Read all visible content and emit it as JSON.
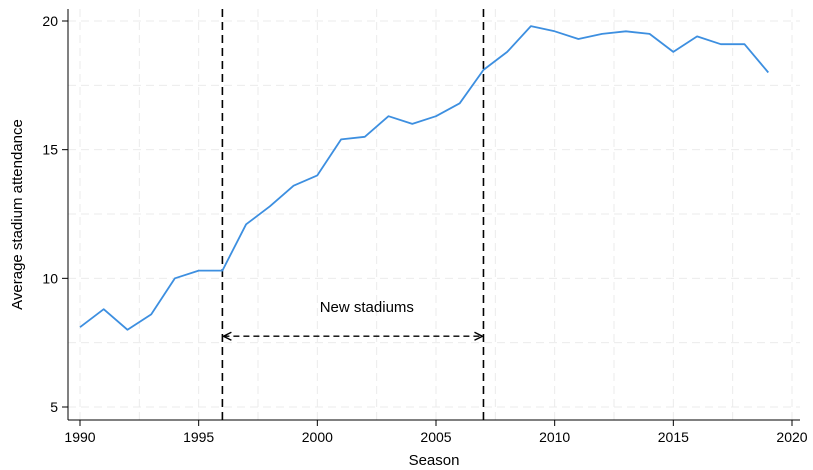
{
  "chart_data": {
    "type": "line",
    "xlabel": "Season",
    "ylabel": "Average stadium attendance",
    "xlim": [
      1990,
      2020
    ],
    "ylim": [
      5,
      20
    ],
    "xticks": [
      1990,
      1995,
      2000,
      2005,
      2010,
      2015,
      2020
    ],
    "yticks": [
      5,
      10,
      15,
      20
    ],
    "grid": true,
    "series": [
      {
        "color": "#3d8fe0",
        "x": [
          1990,
          1991,
          1992,
          1993,
          1994,
          1995,
          1996,
          1997,
          1998,
          1999,
          2000,
          2001,
          2002,
          2003,
          2004,
          2005,
          2006,
          2007,
          2008,
          2009,
          2010,
          2011,
          2012,
          2013,
          2014,
          2015,
          2016,
          2017,
          2018,
          2019
        ],
        "y": [
          8.1,
          8.8,
          8.0,
          8.6,
          10.0,
          10.3,
          10.3,
          12.1,
          12.8,
          13.6,
          14.0,
          15.4,
          15.5,
          16.3,
          16.0,
          16.3,
          16.8,
          18.1,
          18.8,
          19.8,
          19.6,
          19.3,
          19.5,
          19.6,
          19.5,
          18.8,
          19.4,
          19.1,
          19.1,
          18.0
        ]
      }
    ],
    "vlines": [
      1996,
      2007
    ],
    "annotations": [
      {
        "text": "New stadiums",
        "x": 2000.1,
        "y": 8.7
      }
    ],
    "arrow": {
      "x_start": 1996,
      "x_end": 2007,
      "y": 7.75
    }
  }
}
